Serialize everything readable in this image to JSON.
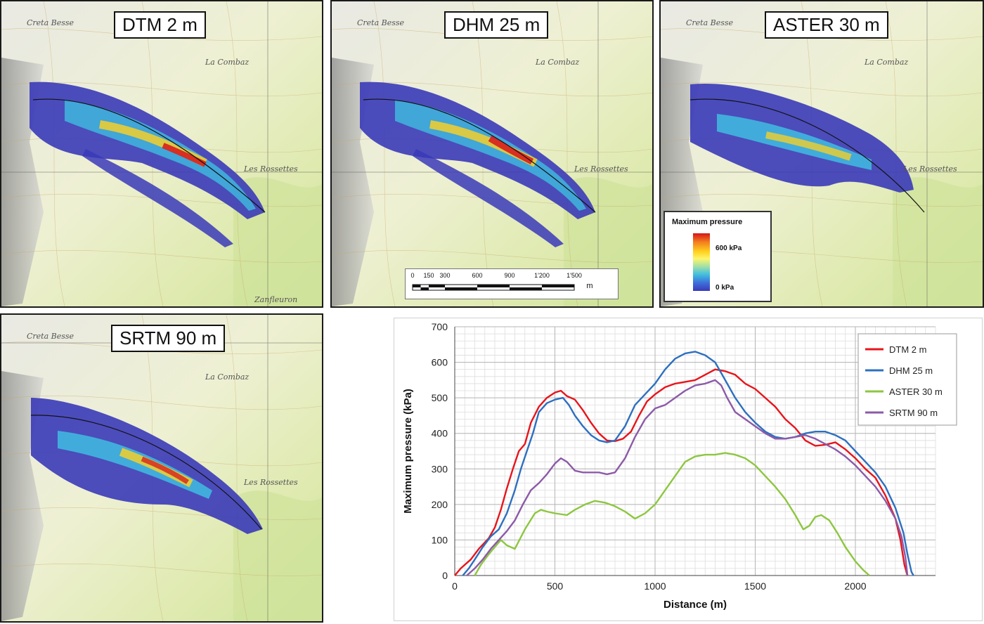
{
  "panels": {
    "dtm": {
      "title": "DTM 2 m"
    },
    "dhm": {
      "title": "DHM 25 m"
    },
    "aster": {
      "title": "ASTER 30 m"
    },
    "srtm": {
      "title": "SRTM 90 m"
    }
  },
  "map_labels": {
    "creta_besse": "Creta Besse",
    "la_combaz": "La Combaz",
    "les_rossettes": "Les Rossettes",
    "zanfleuron": "Zanfleuron"
  },
  "scalebar": {
    "ticks": [
      "0",
      "150",
      "300",
      "600",
      "900",
      "1'200",
      "1'500"
    ],
    "unit": "m"
  },
  "legend": {
    "title": "Maximum pressure",
    "high_label": "600 kPa",
    "low_label": "0 kPa",
    "colors": [
      "#d7141b",
      "#ffd21f",
      "#3fbde0",
      "#3a3ab8"
    ]
  },
  "chart_data": {
    "type": "line",
    "xlabel": "Distance (m)",
    "ylabel": "Maximum pressure (kPa)",
    "xlim": [
      0,
      2400
    ],
    "ylim": [
      0,
      700
    ],
    "xticks": [
      0,
      500,
      1000,
      1500,
      2000
    ],
    "yticks": [
      0,
      100,
      200,
      300,
      400,
      500,
      600,
      700
    ],
    "grid": true,
    "legend_position": "top-right",
    "series": [
      {
        "name": "DTM 2 m",
        "color": "#e8141b",
        "points": [
          [
            0,
            0
          ],
          [
            30,
            20
          ],
          [
            80,
            45
          ],
          [
            120,
            75
          ],
          [
            170,
            105
          ],
          [
            200,
            135
          ],
          [
            230,
            185
          ],
          [
            260,
            245
          ],
          [
            290,
            300
          ],
          [
            320,
            350
          ],
          [
            350,
            370
          ],
          [
            380,
            430
          ],
          [
            420,
            475
          ],
          [
            460,
            500
          ],
          [
            500,
            515
          ],
          [
            530,
            520
          ],
          [
            560,
            505
          ],
          [
            600,
            495
          ],
          [
            640,
            465
          ],
          [
            680,
            430
          ],
          [
            720,
            400
          ],
          [
            760,
            380
          ],
          [
            800,
            378
          ],
          [
            840,
            385
          ],
          [
            880,
            405
          ],
          [
            920,
            450
          ],
          [
            960,
            490
          ],
          [
            1000,
            510
          ],
          [
            1050,
            530
          ],
          [
            1100,
            540
          ],
          [
            1150,
            545
          ],
          [
            1200,
            550
          ],
          [
            1250,
            565
          ],
          [
            1300,
            580
          ],
          [
            1350,
            575
          ],
          [
            1400,
            565
          ],
          [
            1450,
            540
          ],
          [
            1500,
            525
          ],
          [
            1550,
            500
          ],
          [
            1600,
            475
          ],
          [
            1650,
            440
          ],
          [
            1700,
            415
          ],
          [
            1750,
            380
          ],
          [
            1800,
            365
          ],
          [
            1850,
            368
          ],
          [
            1900,
            375
          ],
          [
            1950,
            355
          ],
          [
            2000,
            330
          ],
          [
            2050,
            300
          ],
          [
            2100,
            275
          ],
          [
            2150,
            225
          ],
          [
            2200,
            160
          ],
          [
            2225,
            100
          ],
          [
            2245,
            30
          ],
          [
            2260,
            0
          ]
        ]
      },
      {
        "name": "DHM 25 m",
        "color": "#2d6fc0",
        "points": [
          [
            40,
            0
          ],
          [
            70,
            20
          ],
          [
            100,
            45
          ],
          [
            140,
            80
          ],
          [
            180,
            110
          ],
          [
            220,
            130
          ],
          [
            260,
            175
          ],
          [
            300,
            240
          ],
          [
            330,
            300
          ],
          [
            360,
            350
          ],
          [
            390,
            400
          ],
          [
            420,
            460
          ],
          [
            460,
            485
          ],
          [
            500,
            495
          ],
          [
            540,
            500
          ],
          [
            570,
            480
          ],
          [
            600,
            450
          ],
          [
            640,
            420
          ],
          [
            680,
            395
          ],
          [
            720,
            380
          ],
          [
            760,
            375
          ],
          [
            800,
            380
          ],
          [
            850,
            420
          ],
          [
            900,
            480
          ],
          [
            950,
            510
          ],
          [
            1000,
            540
          ],
          [
            1050,
            580
          ],
          [
            1100,
            610
          ],
          [
            1150,
            625
          ],
          [
            1200,
            630
          ],
          [
            1250,
            620
          ],
          [
            1300,
            600
          ],
          [
            1350,
            550
          ],
          [
            1400,
            500
          ],
          [
            1450,
            460
          ],
          [
            1500,
            430
          ],
          [
            1550,
            405
          ],
          [
            1600,
            390
          ],
          [
            1650,
            385
          ],
          [
            1700,
            390
          ],
          [
            1750,
            400
          ],
          [
            1800,
            405
          ],
          [
            1850,
            405
          ],
          [
            1900,
            395
          ],
          [
            1950,
            380
          ],
          [
            2000,
            350
          ],
          [
            2050,
            320
          ],
          [
            2100,
            290
          ],
          [
            2150,
            250
          ],
          [
            2200,
            190
          ],
          [
            2240,
            120
          ],
          [
            2260,
            60
          ],
          [
            2280,
            10
          ],
          [
            2290,
            0
          ]
        ]
      },
      {
        "name": "ASTER 30 m",
        "color": "#8dc63f",
        "points": [
          [
            100,
            0
          ],
          [
            130,
            30
          ],
          [
            170,
            60
          ],
          [
            200,
            80
          ],
          [
            230,
            100
          ],
          [
            260,
            85
          ],
          [
            300,
            75
          ],
          [
            350,
            130
          ],
          [
            400,
            175
          ],
          [
            430,
            185
          ],
          [
            460,
            180
          ],
          [
            500,
            175
          ],
          [
            560,
            170
          ],
          [
            600,
            185
          ],
          [
            650,
            200
          ],
          [
            700,
            210
          ],
          [
            750,
            205
          ],
          [
            800,
            195
          ],
          [
            850,
            180
          ],
          [
            900,
            160
          ],
          [
            950,
            175
          ],
          [
            1000,
            200
          ],
          [
            1050,
            240
          ],
          [
            1100,
            280
          ],
          [
            1150,
            320
          ],
          [
            1200,
            335
          ],
          [
            1250,
            340
          ],
          [
            1300,
            340
          ],
          [
            1350,
            345
          ],
          [
            1400,
            340
          ],
          [
            1450,
            330
          ],
          [
            1500,
            310
          ],
          [
            1550,
            280
          ],
          [
            1600,
            250
          ],
          [
            1650,
            215
          ],
          [
            1700,
            170
          ],
          [
            1740,
            130
          ],
          [
            1770,
            140
          ],
          [
            1800,
            165
          ],
          [
            1830,
            170
          ],
          [
            1870,
            155
          ],
          [
            1910,
            120
          ],
          [
            1950,
            80
          ],
          [
            2000,
            40
          ],
          [
            2040,
            15
          ],
          [
            2070,
            0
          ]
        ]
      },
      {
        "name": "SRTM 90 m",
        "color": "#8c5aa8",
        "points": [
          [
            60,
            0
          ],
          [
            100,
            20
          ],
          [
            140,
            45
          ],
          [
            180,
            75
          ],
          [
            220,
            100
          ],
          [
            260,
            125
          ],
          [
            300,
            155
          ],
          [
            340,
            200
          ],
          [
            380,
            240
          ],
          [
            420,
            260
          ],
          [
            460,
            285
          ],
          [
            500,
            315
          ],
          [
            530,
            330
          ],
          [
            560,
            320
          ],
          [
            600,
            295
          ],
          [
            640,
            290
          ],
          [
            680,
            290
          ],
          [
            720,
            290
          ],
          [
            760,
            285
          ],
          [
            800,
            290
          ],
          [
            850,
            330
          ],
          [
            900,
            390
          ],
          [
            950,
            440
          ],
          [
            1000,
            470
          ],
          [
            1050,
            480
          ],
          [
            1100,
            500
          ],
          [
            1150,
            520
          ],
          [
            1200,
            535
          ],
          [
            1250,
            540
          ],
          [
            1300,
            550
          ],
          [
            1330,
            535
          ],
          [
            1360,
            500
          ],
          [
            1400,
            460
          ],
          [
            1450,
            440
          ],
          [
            1500,
            420
          ],
          [
            1550,
            400
          ],
          [
            1600,
            385
          ],
          [
            1650,
            385
          ],
          [
            1700,
            390
          ],
          [
            1750,
            395
          ],
          [
            1800,
            385
          ],
          [
            1850,
            370
          ],
          [
            1900,
            355
          ],
          [
            1950,
            335
          ],
          [
            2000,
            310
          ],
          [
            2050,
            280
          ],
          [
            2100,
            250
          ],
          [
            2150,
            210
          ],
          [
            2200,
            160
          ],
          [
            2230,
            110
          ],
          [
            2250,
            50
          ],
          [
            2260,
            0
          ]
        ]
      }
    ]
  }
}
